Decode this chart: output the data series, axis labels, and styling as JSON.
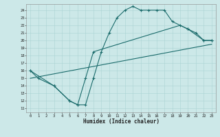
{
  "xlabel": "Humidex (Indice chaleur)",
  "bg_color": "#cce8e8",
  "line_color": "#1a6b6b",
  "grid_color": "#aad4d4",
  "xlim": [
    -0.5,
    23.5
  ],
  "ylim": [
    10.5,
    24.8
  ],
  "xticks": [
    0,
    1,
    2,
    3,
    4,
    5,
    6,
    7,
    8,
    9,
    10,
    11,
    12,
    13,
    14,
    15,
    16,
    17,
    18,
    19,
    20,
    21,
    22,
    23
  ],
  "yticks": [
    11,
    12,
    13,
    14,
    15,
    16,
    17,
    18,
    19,
    20,
    21,
    22,
    23,
    24
  ],
  "line1_x": [
    0,
    1,
    3,
    5,
    6,
    7,
    8,
    9,
    10,
    11,
    12,
    13,
    14,
    15,
    16,
    17,
    18,
    20,
    21,
    22,
    23
  ],
  "line1_y": [
    16,
    15,
    14,
    12,
    11.5,
    11.5,
    15,
    18.5,
    21,
    23,
    24,
    24.5,
    24,
    24,
    24,
    24,
    22.5,
    21.5,
    21,
    20,
    20
  ],
  "line2_x": [
    0,
    3,
    5,
    6,
    7,
    8,
    19,
    20,
    22,
    23
  ],
  "line2_y": [
    16,
    14,
    12,
    11.5,
    15,
    18.5,
    22,
    21.5,
    20,
    20
  ],
  "line3_x": [
    0,
    23
  ],
  "line3_y": [
    15,
    19.5
  ]
}
